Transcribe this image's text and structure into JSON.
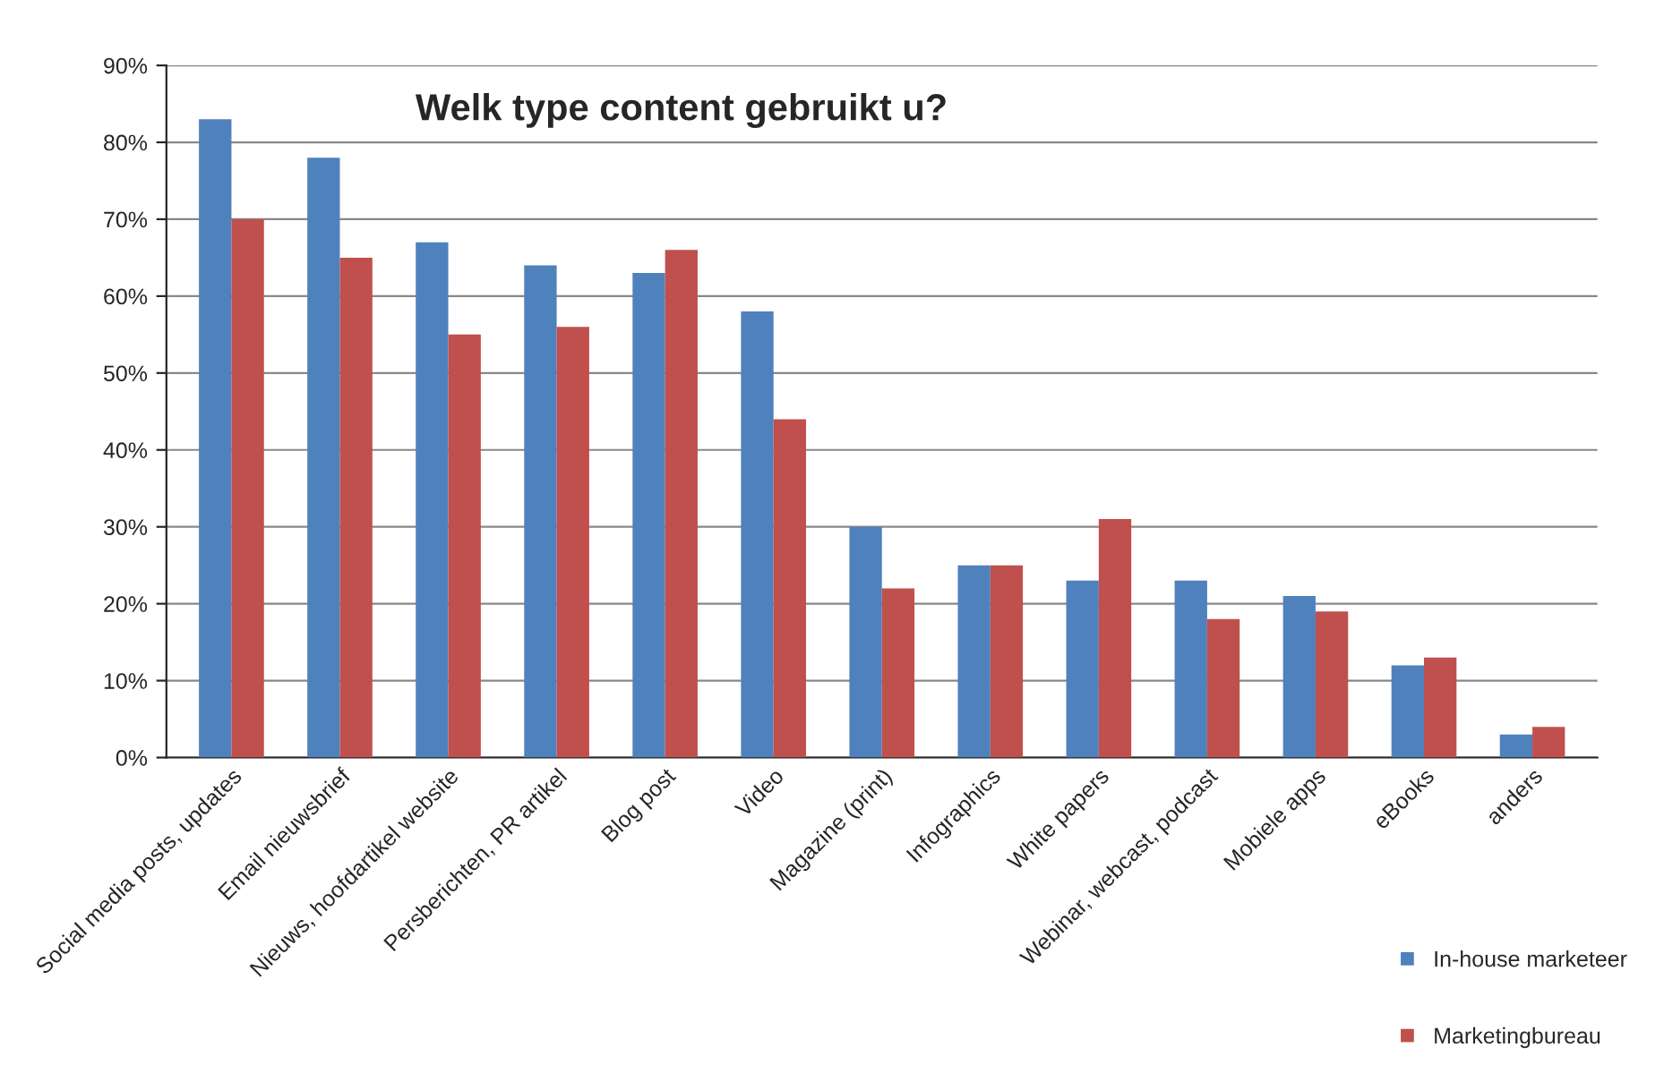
{
  "chart_data": {
    "type": "bar",
    "title": "Welk type content gebruikt u?",
    "categories": [
      "Social media posts, updates",
      "Email nieuwsbrief",
      "Nieuws, hoofdartikel website",
      "Persberichten, PR artikel",
      "Blog post",
      "Video",
      "Magazine (print)",
      "Infographics",
      "White papers",
      "Webinar, webcast, podcast",
      "Mobiele apps",
      "eBooks",
      "anders"
    ],
    "series": [
      {
        "name": "In-house marketeer",
        "color": "#4f81bd",
        "values": [
          83,
          78,
          67,
          64,
          63,
          58,
          30,
          25,
          23,
          23,
          21,
          12,
          3
        ]
      },
      {
        "name": "Marketingbureau",
        "color": "#c0504d",
        "values": [
          70,
          65,
          55,
          56,
          66,
          44,
          22,
          25,
          31,
          18,
          19,
          13,
          4
        ]
      }
    ],
    "ylim": [
      0,
      90
    ],
    "yticks": [
      {
        "value": 0,
        "label": "0%"
      },
      {
        "value": 10,
        "label": "10%"
      },
      {
        "value": 20,
        "label": "20%"
      },
      {
        "value": 30,
        "label": "30%"
      },
      {
        "value": 40,
        "label": "40%"
      },
      {
        "value": 50,
        "label": "50%"
      },
      {
        "value": 60,
        "label": "60%"
      },
      {
        "value": 70,
        "label": "70%"
      },
      {
        "value": 80,
        "label": "80%"
      },
      {
        "value": 90,
        "label": "90%"
      }
    ],
    "grid": "y",
    "legend": "bottom right"
  }
}
